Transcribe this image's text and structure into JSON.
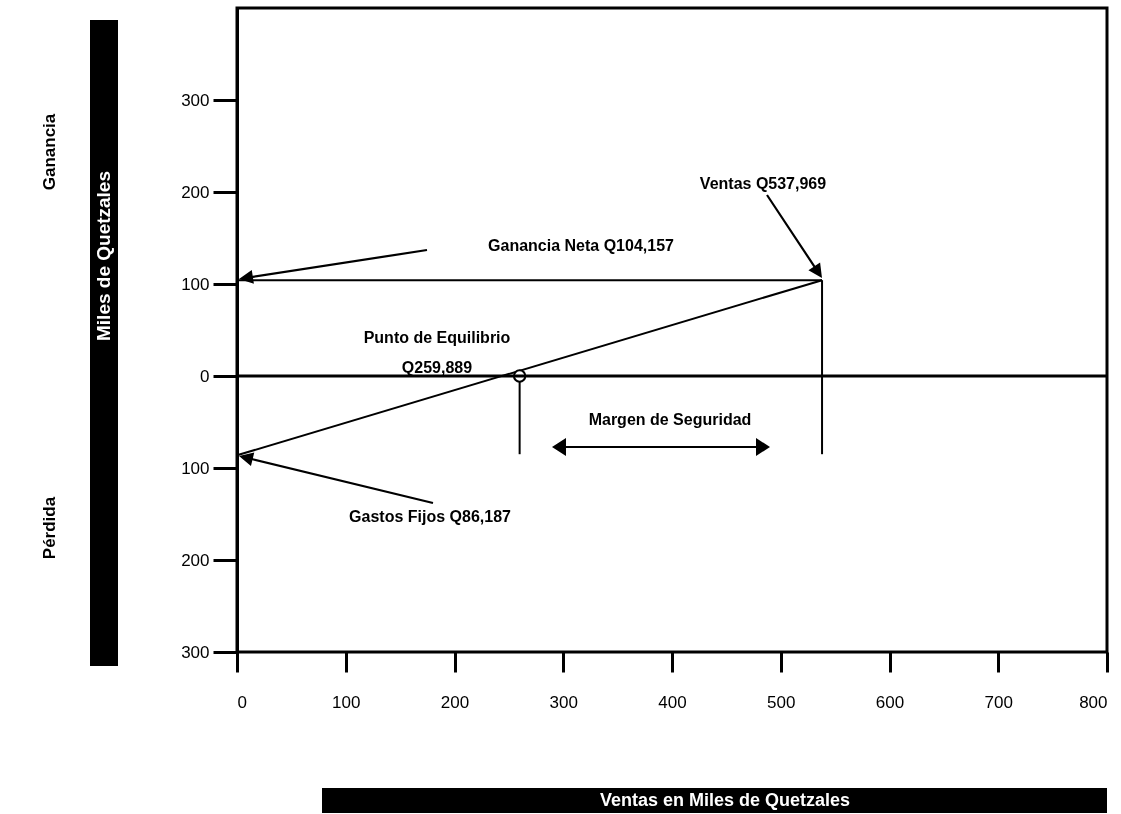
{
  "chart_data": {
    "type": "line",
    "ylabel": "Miles de Quetzales",
    "xlim": [
      0,
      800
    ],
    "xticks": [
      0,
      100,
      200,
      300,
      400,
      500,
      600,
      700,
      800
    ],
    "ylim": [
      -300,
      400
    ],
    "yticks": [
      {
        "value": -300,
        "label": "300"
      },
      {
        "value": -200,
        "label": "200"
      },
      {
        "value": -100,
        "label": "100"
      },
      0,
      100,
      200,
      300
    ],
    "grid": false,
    "marker": "none",
    "line_style": "solid",
    "series": [
      {
        "color": "#000000",
        "x": [
          0,
          537.969
        ],
        "values": [
          -86.187,
          104.157
        ]
      },
      {
        "color": "#000000",
        "x": [
          0,
          537.969
        ],
        "values": [
          104.157,
          104.157
        ]
      },
      {
        "color": "#000000",
        "x": [
          259.889,
          259.889
        ],
        "values": [
          0,
          -85
        ]
      },
      {
        "color": "#000000",
        "x": [
          537.969,
          537.969
        ],
        "values": [
          104.157,
          -85
        ]
      },
      {
        "type": "scatter",
        "color": "#000000",
        "marker": "circle",
        "x": [
          259.889
        ],
        "values": [
          0
        ]
      }
    ],
    "ref_lines": [
      {
        "axis": "y",
        "value": 0,
        "color": "#000000"
      }
    ],
    "annotations": [
      "Ventas Q537,969",
      "Ganancia Neta Q104,157",
      "Punto de Equilibrio\nQ259,889",
      "Gastos Fijos Q86,187",
      "Margen de Seguridad",
      "Ganancia",
      "Pérdida",
      "Ventas en Miles de Quetzales"
    ]
  }
}
